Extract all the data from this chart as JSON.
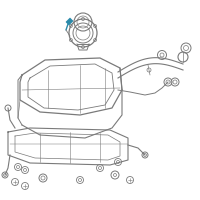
{
  "bg_color": "#ffffff",
  "line_color": "#7a7a7a",
  "dark_line": "#555555",
  "highlight_color": "#2a8aaa",
  "fig_width": 2.0,
  "fig_height": 2.0,
  "dpi": 100
}
